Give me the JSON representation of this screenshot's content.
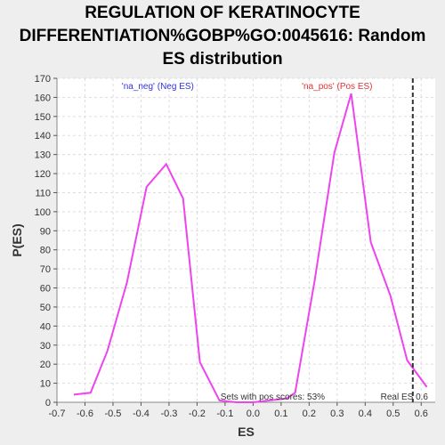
{
  "chart_data": {
    "type": "line",
    "title_lines": [
      "REGULATION OF KERATINOCYTE",
      "DIFFERENTIATION%GOBP%GO:0045616: Random",
      "ES distribution"
    ],
    "xlabel": "ES",
    "ylabel": "P(ES)",
    "xlim": [
      -0.7,
      0.65
    ],
    "ylim": [
      0,
      170
    ],
    "xticks": [
      -0.7,
      -0.6,
      -0.5,
      -0.4,
      -0.3,
      -0.2,
      -0.1,
      0.0,
      0.1,
      0.2,
      0.3,
      0.4,
      0.5,
      0.6
    ],
    "xtick_labels": [
      "-0.7",
      "-0.6",
      "-0.5",
      "-0.4",
      "-0.3",
      "-0.2",
      "-0.1",
      "0.0",
      "0.1",
      "0.2",
      "0.3",
      "0.4",
      "0.5",
      "0.6"
    ],
    "yticks": [
      0,
      10,
      20,
      30,
      40,
      50,
      60,
      70,
      80,
      90,
      100,
      110,
      120,
      130,
      140,
      150,
      160,
      170
    ],
    "grid": true,
    "series": [
      {
        "color": "#ee44ee",
        "x": [
          -0.64,
          -0.58,
          -0.52,
          -0.45,
          -0.38,
          -0.31,
          -0.25,
          -0.19,
          -0.12,
          -0.06,
          0.0,
          0.06,
          0.12,
          0.15,
          0.22,
          0.29,
          0.35,
          0.42,
          0.49,
          0.55,
          0.62
        ],
        "y": [
          4,
          5,
          27,
          63,
          113,
          125,
          107,
          21,
          1,
          0,
          0,
          1,
          2,
          5,
          64,
          131,
          162,
          84,
          56,
          22,
          8
        ]
      }
    ],
    "real_es": 0.57,
    "real_es_label": "Real ES 0.6",
    "annotations": {
      "neg": "'na_neg' (Neg ES)",
      "pos": "'na_pos' (Pos ES)",
      "sets": "Sets with pos scores: 53%"
    },
    "colors": {
      "neg": "#3333dd",
      "pos": "#dd3333",
      "line": "#ee44ee",
      "real_es": "#333333"
    }
  }
}
